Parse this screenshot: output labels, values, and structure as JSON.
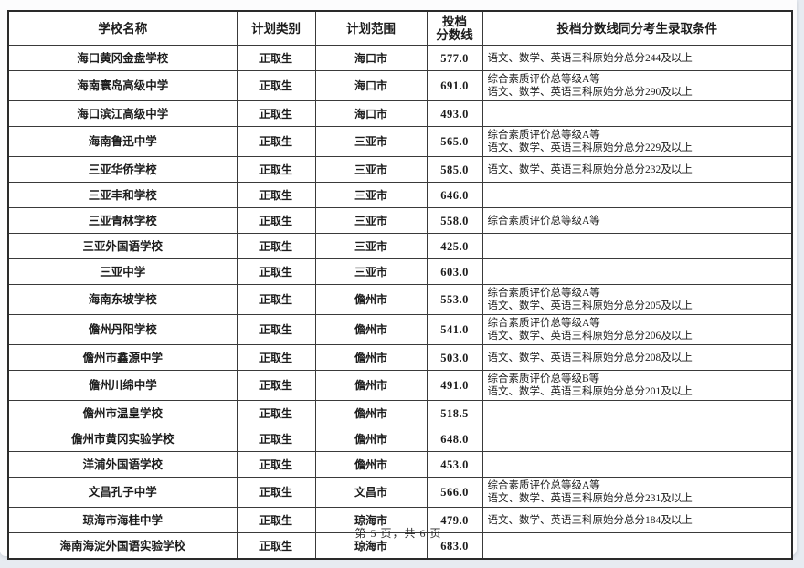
{
  "page": {
    "footer": "第 5 页，共 6 页"
  },
  "colors": {
    "sheet": "#fcfcfd",
    "canvas": "#e7ebf1",
    "table_border": "#2a2a2a",
    "text": "#1c1c1c"
  },
  "table": {
    "headers": [
      "学校名称",
      "计划类别",
      "计划范围",
      "投档\n分数线",
      "投档分数线同分考生录取条件"
    ],
    "rows": [
      {
        "school": "海口黄冈金盘学校",
        "plan_type": "正取生",
        "plan_scope": "海口市",
        "score": "577.0",
        "conditions": [
          "语文、数学、英语三科原始分总分244及以上"
        ]
      },
      {
        "school": "海南寰岛高级中学",
        "plan_type": "正取生",
        "plan_scope": "海口市",
        "score": "691.0",
        "conditions": [
          "综合素质评价总等级A等",
          "语文、数学、英语三科原始分总分290及以上"
        ]
      },
      {
        "school": "海口滨江高级中学",
        "plan_type": "正取生",
        "plan_scope": "海口市",
        "score": "493.0",
        "conditions": []
      },
      {
        "school": "海南鲁迅中学",
        "plan_type": "正取生",
        "plan_scope": "三亚市",
        "score": "565.0",
        "conditions": [
          "综合素质评价总等级A等",
          "语文、数学、英语三科原始分总分229及以上"
        ]
      },
      {
        "school": "三亚华侨学校",
        "plan_type": "正取生",
        "plan_scope": "三亚市",
        "score": "585.0",
        "conditions": [
          "语文、数学、英语三科原始分总分232及以上"
        ]
      },
      {
        "school": "三亚丰和学校",
        "plan_type": "正取生",
        "plan_scope": "三亚市",
        "score": "646.0",
        "conditions": []
      },
      {
        "school": "三亚青林学校",
        "plan_type": "正取生",
        "plan_scope": "三亚市",
        "score": "558.0",
        "conditions": [
          "综合素质评价总等级A等"
        ]
      },
      {
        "school": "三亚外国语学校",
        "plan_type": "正取生",
        "plan_scope": "三亚市",
        "score": "425.0",
        "conditions": []
      },
      {
        "school": "三亚中学",
        "plan_type": "正取生",
        "plan_scope": "三亚市",
        "score": "603.0",
        "conditions": []
      },
      {
        "school": "海南东坡学校",
        "plan_type": "正取生",
        "plan_scope": "儋州市",
        "score": "553.0",
        "conditions": [
          "综合素质评价总等级A等",
          "语文、数学、英语三科原始分总分205及以上"
        ]
      },
      {
        "school": "儋州丹阳学校",
        "plan_type": "正取生",
        "plan_scope": "儋州市",
        "score": "541.0",
        "conditions": [
          "综合素质评价总等级A等",
          "语文、数学、英语三科原始分总分206及以上"
        ]
      },
      {
        "school": "儋州市鑫源中学",
        "plan_type": "正取生",
        "plan_scope": "儋州市",
        "score": "503.0",
        "conditions": [
          "语文、数学、英语三科原始分总分208及以上"
        ]
      },
      {
        "school": "儋州川绵中学",
        "plan_type": "正取生",
        "plan_scope": "儋州市",
        "score": "491.0",
        "conditions": [
          "综合素质评价总等级B等",
          "语文、数学、英语三科原始分总分201及以上"
        ]
      },
      {
        "school": "儋州市温皇学校",
        "plan_type": "正取生",
        "plan_scope": "儋州市",
        "score": "518.5",
        "conditions": []
      },
      {
        "school": "儋州市黄冈实验学校",
        "plan_type": "正取生",
        "plan_scope": "儋州市",
        "score": "648.0",
        "conditions": []
      },
      {
        "school": "洋浦外国语学校",
        "plan_type": "正取生",
        "plan_scope": "儋州市",
        "score": "453.0",
        "conditions": []
      },
      {
        "school": "文昌孔子中学",
        "plan_type": "正取生",
        "plan_scope": "文昌市",
        "score": "566.0",
        "conditions": [
          "综合素质评价总等级A等",
          "语文、数学、英语三科原始分总分231及以上"
        ]
      },
      {
        "school": "琼海市海桂中学",
        "plan_type": "正取生",
        "plan_scope": "琼海市",
        "score": "479.0",
        "conditions": [
          "语文、数学、英语三科原始分总分184及以上"
        ]
      },
      {
        "school": "海南海淀外国语实验学校",
        "plan_type": "正取生",
        "plan_scope": "琼海市",
        "score": "683.0",
        "conditions": []
      }
    ]
  }
}
